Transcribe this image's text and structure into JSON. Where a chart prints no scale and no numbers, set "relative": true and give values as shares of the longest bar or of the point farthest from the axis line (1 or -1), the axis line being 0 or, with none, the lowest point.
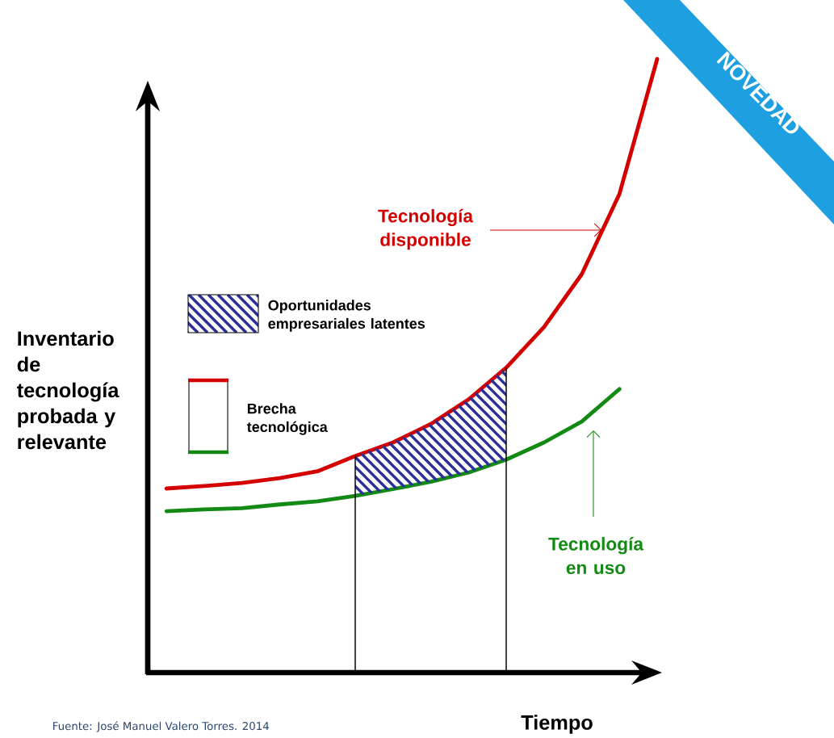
{
  "chart_data": {
    "type": "line",
    "relative": true,
    "line_style": "solid",
    "categories": [
      null,
      null,
      null,
      null,
      null,
      null,
      null,
      null,
      null,
      null,
      null,
      null,
      null,
      null
    ],
    "series": [
      {
        "name": "Tecnología disponible",
        "color": "#d40000",
        "values": [
          0.3,
          0.304,
          0.309,
          0.317,
          0.328,
          0.353,
          0.375,
          0.405,
          0.445,
          0.497,
          0.563,
          0.649,
          0.78,
          1.0
        ]
      },
      {
        "name": "Tecnología en uso",
        "color": "#138a13",
        "values": [
          0.263,
          0.266,
          0.268,
          0.274,
          0.279,
          0.288,
          0.299,
          0.311,
          0.326,
          0.347,
          0.375,
          0.409,
          0.462,
          null
        ]
      }
    ],
    "ylabel": "Inventario de tecnología probada y relevante",
    "xlabel": "Tiempo",
    "annotations": [
      "Brecha tecnológica",
      "NOVEDAD",
      "Fuente: José Manuel Valero Torres. 2014",
      "Oportunidades empresariales latentes"
    ]
  }
}
